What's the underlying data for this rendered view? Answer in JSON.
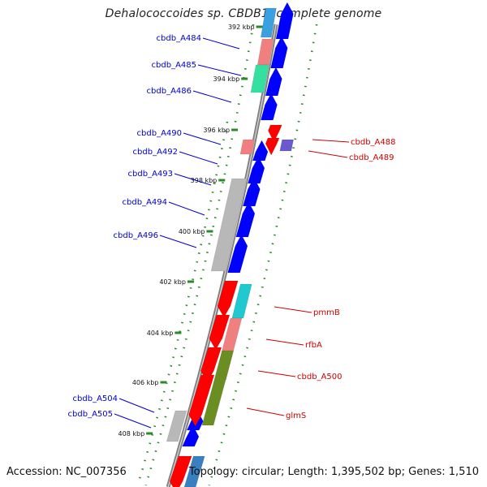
{
  "title": "Dehalococcoides sp. CBDB1, complete genome",
  "accession_label": "Accession: NC_007356",
  "topology_label": "Topology: circular; Length: 1,395,502 bp; Genes: 1,510",
  "ticks": [
    "392 kbp",
    "394 kbp",
    "396 kbp",
    "398 kbp",
    "400 kbp",
    "402 kbp",
    "404 kbp",
    "406 kbp",
    "408 kbp"
  ],
  "genes_left": [
    {
      "name": "cbdb_A484"
    },
    {
      "name": "cbdb_A485"
    },
    {
      "name": "cbdb_A486"
    },
    {
      "name": "cbdb_A490"
    },
    {
      "name": "cbdb_A492"
    },
    {
      "name": "cbdb_A493"
    },
    {
      "name": "cbdb_A494"
    },
    {
      "name": "cbdb_A496"
    },
    {
      "name": "cbdb_A504"
    },
    {
      "name": "cbdb_A505"
    }
  ],
  "genes_right": [
    {
      "name": "cbdb_A488"
    },
    {
      "name": "cbdb_A489"
    },
    {
      "name": "pmmB"
    },
    {
      "name": "rfbA"
    },
    {
      "name": "cbdb_A500"
    },
    {
      "name": "glmS"
    }
  ],
  "colors": {
    "forward_gene": "#0000ff",
    "reverse_gene": "#ff0000",
    "left_label": "#0000cc",
    "right_label": "#cc0000",
    "backbone": "#808080",
    "tick_dots": "#2a8a2a"
  }
}
